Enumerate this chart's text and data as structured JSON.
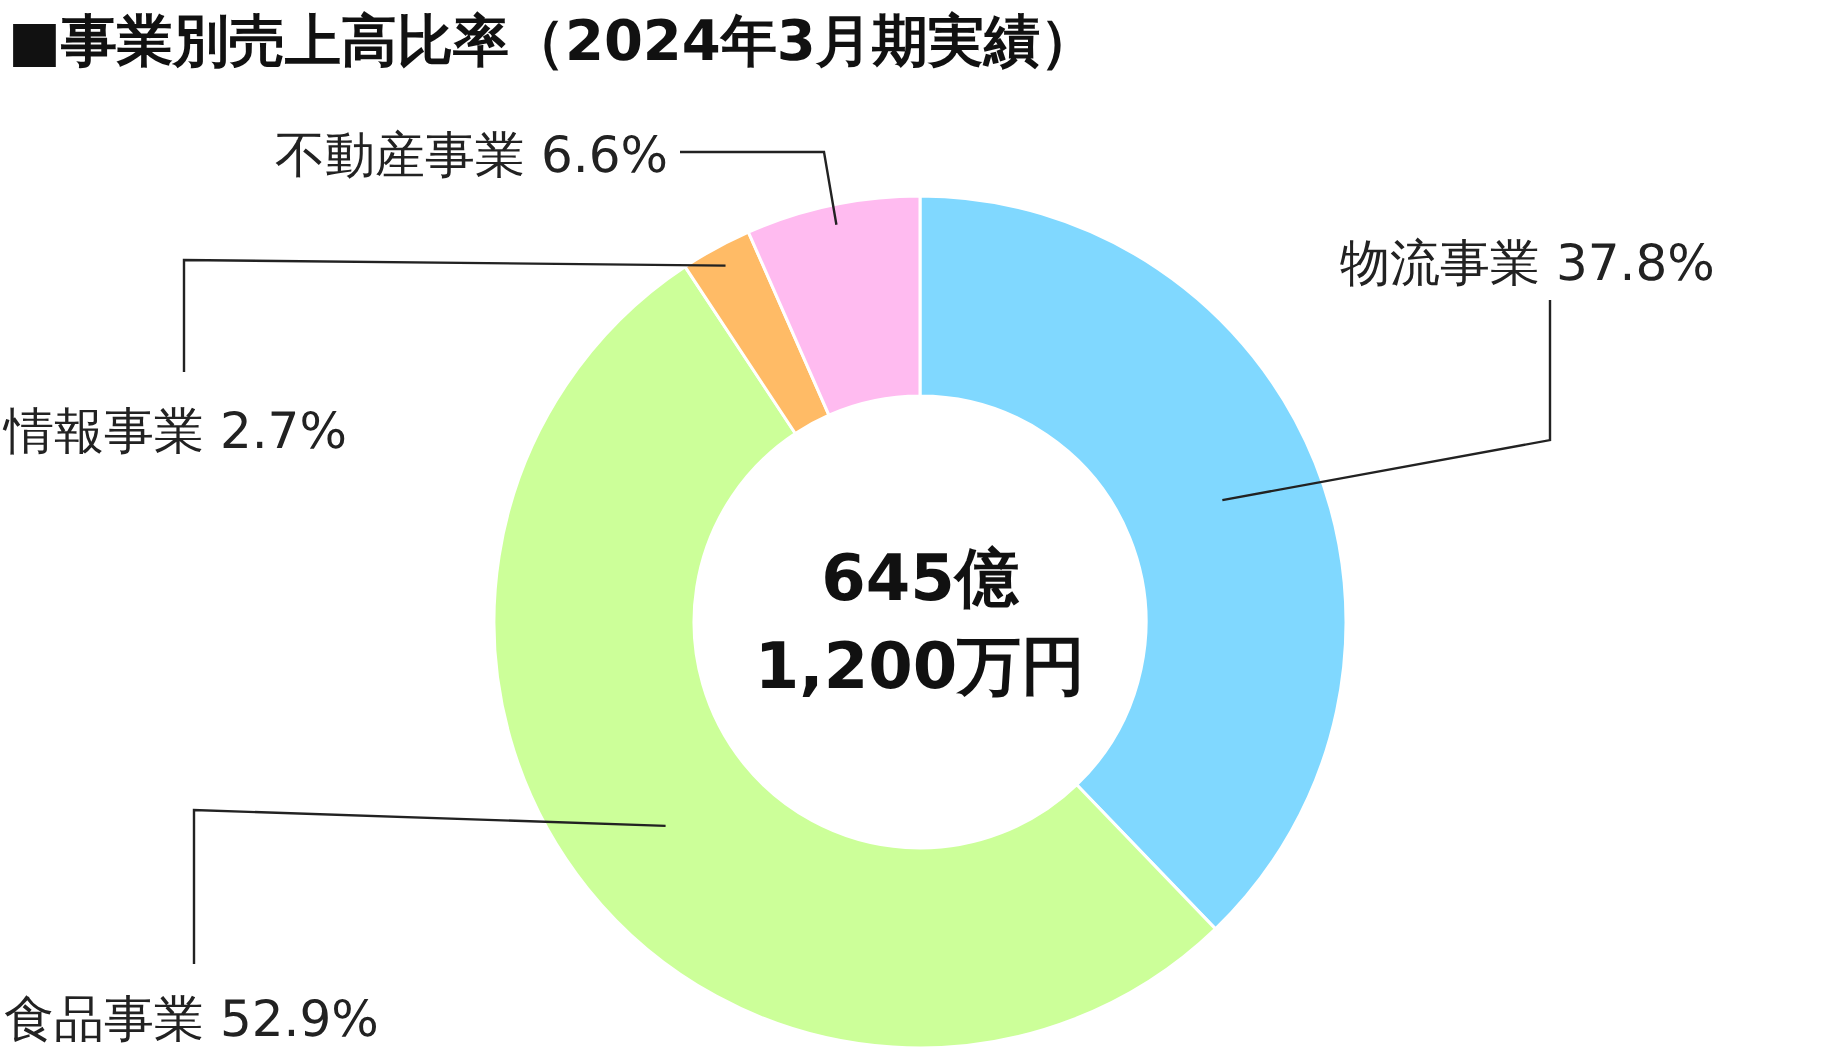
{
  "chart_data": {
    "type": "donut",
    "title": "■事業別売上高比率（2024年3月期実績）",
    "categories": [
      "物流事業",
      "食品事業",
      "情報事業",
      "不動産事業"
    ],
    "values": [
      37.8,
      52.9,
      2.7,
      6.6
    ],
    "value_labels": [
      "37.8%",
      "52.9%",
      "2.7%",
      "6.6%"
    ],
    "colors": [
      "#80d8ff",
      "#ccff99",
      "#ffbb66",
      "#ffbbf0"
    ],
    "annotations": [
      "645億",
      "1,200万円"
    ]
  }
}
